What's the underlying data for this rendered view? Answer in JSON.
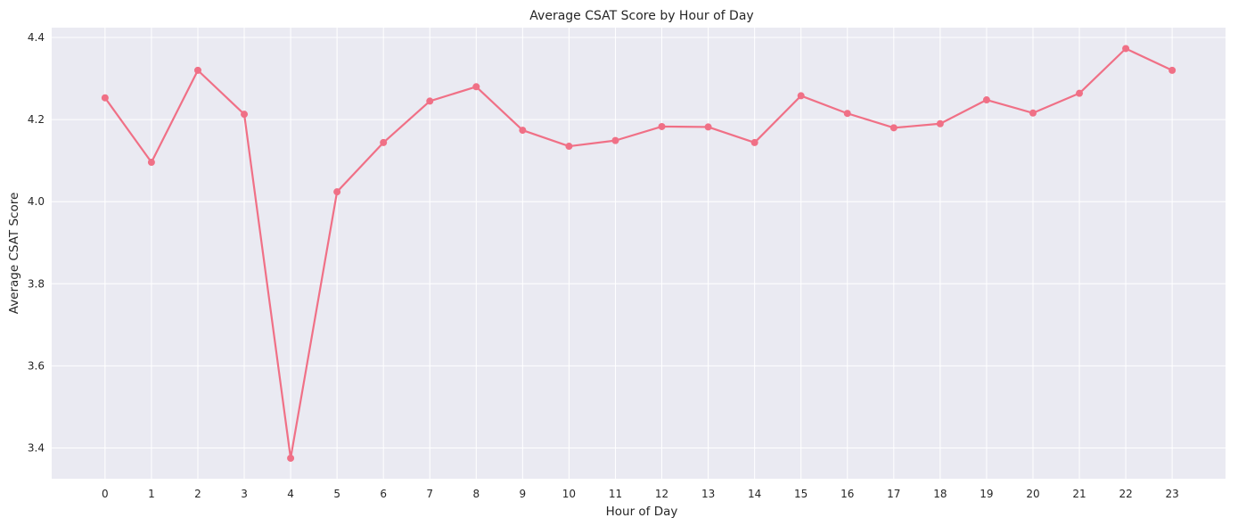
{
  "chart_data": {
    "type": "line",
    "title": "Average CSAT Score by Hour of Day",
    "xlabel": "Hour of Day",
    "ylabel": "Average CSAT Score",
    "x": [
      0,
      1,
      2,
      3,
      4,
      5,
      6,
      7,
      8,
      9,
      10,
      11,
      12,
      13,
      14,
      15,
      16,
      17,
      18,
      19,
      20,
      21,
      22,
      23
    ],
    "x_tick_labels": [
      "0",
      "1",
      "2",
      "3",
      "4",
      "5",
      "6",
      "7",
      "8",
      "9",
      "10",
      "11",
      "12",
      "13",
      "14",
      "15",
      "16",
      "17",
      "18",
      "19",
      "20",
      "21",
      "22",
      "23"
    ],
    "series": [
      {
        "values": [
          4.253,
          4.096,
          4.32,
          4.213,
          3.375,
          4.024,
          4.144,
          4.245,
          4.28,
          4.174,
          4.135,
          4.149,
          4.183,
          4.182,
          4.144,
          4.258,
          4.215,
          4.18,
          4.19,
          4.248,
          4.216,
          4.264,
          4.373,
          4.32
        ],
        "color": "#f07086"
      }
    ],
    "xlim": [
      -1.15,
      24.15
    ],
    "ylim": [
      3.325,
      4.424
    ],
    "y_ticks": [
      3.4,
      3.6,
      3.8,
      4.0,
      4.2,
      4.4
    ],
    "y_tick_labels": [
      "3.4",
      "3.6",
      "3.8",
      "4.0",
      "4.2",
      "4.4"
    ],
    "grid": true,
    "background_color": "#eaeaf2",
    "grid_color": "#ffffff"
  }
}
